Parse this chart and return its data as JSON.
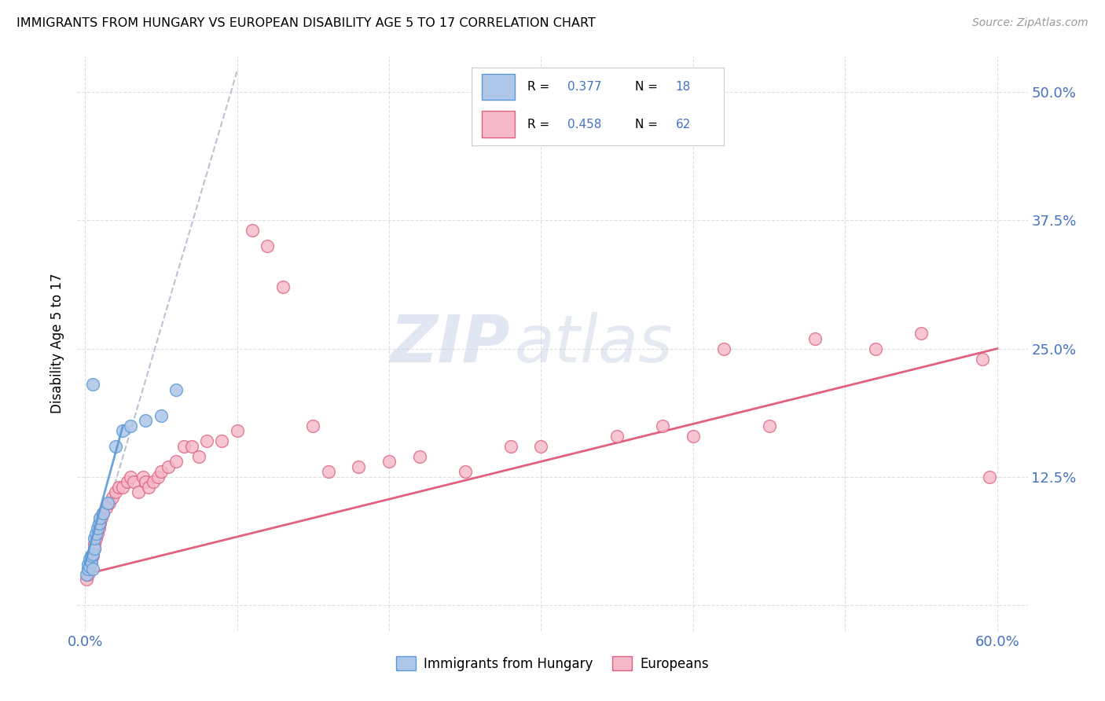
{
  "title": "IMMIGRANTS FROM HUNGARY VS EUROPEAN DISABILITY AGE 5 TO 17 CORRELATION CHART",
  "source": "Source: ZipAtlas.com",
  "ylabel": "Disability Age 5 to 17",
  "xlim": [
    -0.005,
    0.62
  ],
  "ylim": [
    -0.025,
    0.535
  ],
  "xtick_pos": [
    0.0,
    0.1,
    0.2,
    0.3,
    0.4,
    0.5,
    0.6
  ],
  "xticklabels": [
    "0.0%",
    "",
    "",
    "",
    "",
    "",
    "60.0%"
  ],
  "ytick_pos": [
    0.0,
    0.125,
    0.25,
    0.375,
    0.5
  ],
  "ytick_labels_right": [
    "",
    "12.5%",
    "25.0%",
    "37.5%",
    "50.0%"
  ],
  "hungary_color": "#aec6e8",
  "hungary_edge_color": "#5b9bd5",
  "european_color": "#f4b8c8",
  "european_edge_color": "#e06080",
  "hungary_line_color": "#aaaacc",
  "european_line_color": "#e05878",
  "tick_label_color": "#4472c4",
  "legend_border_color": "#cccccc",
  "watermark_color_zip": "#c8d4e8",
  "watermark_color_atlas": "#c0cce0",
  "hungary_x": [
    0.001,
    0.002,
    0.002,
    0.003,
    0.003,
    0.004,
    0.004,
    0.005,
    0.005,
    0.006,
    0.006,
    0.007,
    0.008,
    0.009,
    0.01,
    0.012,
    0.015,
    0.02,
    0.025,
    0.03,
    0.04,
    0.05,
    0.06,
    0.005
  ],
  "hungary_y": [
    0.03,
    0.035,
    0.04,
    0.038,
    0.045,
    0.042,
    0.048,
    0.035,
    0.05,
    0.055,
    0.065,
    0.07,
    0.075,
    0.08,
    0.085,
    0.09,
    0.1,
    0.155,
    0.17,
    0.175,
    0.18,
    0.185,
    0.21,
    0.215
  ],
  "european_x": [
    0.001,
    0.002,
    0.002,
    0.003,
    0.003,
    0.004,
    0.004,
    0.005,
    0.005,
    0.006,
    0.006,
    0.007,
    0.008,
    0.009,
    0.01,
    0.011,
    0.012,
    0.014,
    0.016,
    0.018,
    0.02,
    0.022,
    0.025,
    0.028,
    0.03,
    0.032,
    0.035,
    0.038,
    0.04,
    0.042,
    0.045,
    0.048,
    0.05,
    0.055,
    0.06,
    0.065,
    0.07,
    0.075,
    0.08,
    0.09,
    0.1,
    0.11,
    0.12,
    0.13,
    0.15,
    0.16,
    0.18,
    0.2,
    0.22,
    0.25,
    0.28,
    0.3,
    0.35,
    0.38,
    0.4,
    0.42,
    0.45,
    0.48,
    0.52,
    0.55,
    0.59,
    0.595
  ],
  "european_y": [
    0.025,
    0.03,
    0.035,
    0.038,
    0.04,
    0.042,
    0.045,
    0.048,
    0.05,
    0.055,
    0.06,
    0.065,
    0.07,
    0.075,
    0.08,
    0.085,
    0.09,
    0.095,
    0.1,
    0.105,
    0.11,
    0.115,
    0.115,
    0.12,
    0.125,
    0.12,
    0.11,
    0.125,
    0.12,
    0.115,
    0.12,
    0.125,
    0.13,
    0.135,
    0.14,
    0.155,
    0.155,
    0.145,
    0.16,
    0.16,
    0.17,
    0.365,
    0.35,
    0.31,
    0.175,
    0.13,
    0.135,
    0.14,
    0.145,
    0.13,
    0.155,
    0.155,
    0.165,
    0.175,
    0.165,
    0.25,
    0.175,
    0.26,
    0.25,
    0.265,
    0.24,
    0.125
  ],
  "hungary_trend_x": [
    0.0,
    0.1
  ],
  "hungary_trend_y": [
    0.02,
    0.52
  ],
  "european_trend_x": [
    0.0,
    0.6
  ],
  "european_trend_y": [
    0.03,
    0.25
  ]
}
